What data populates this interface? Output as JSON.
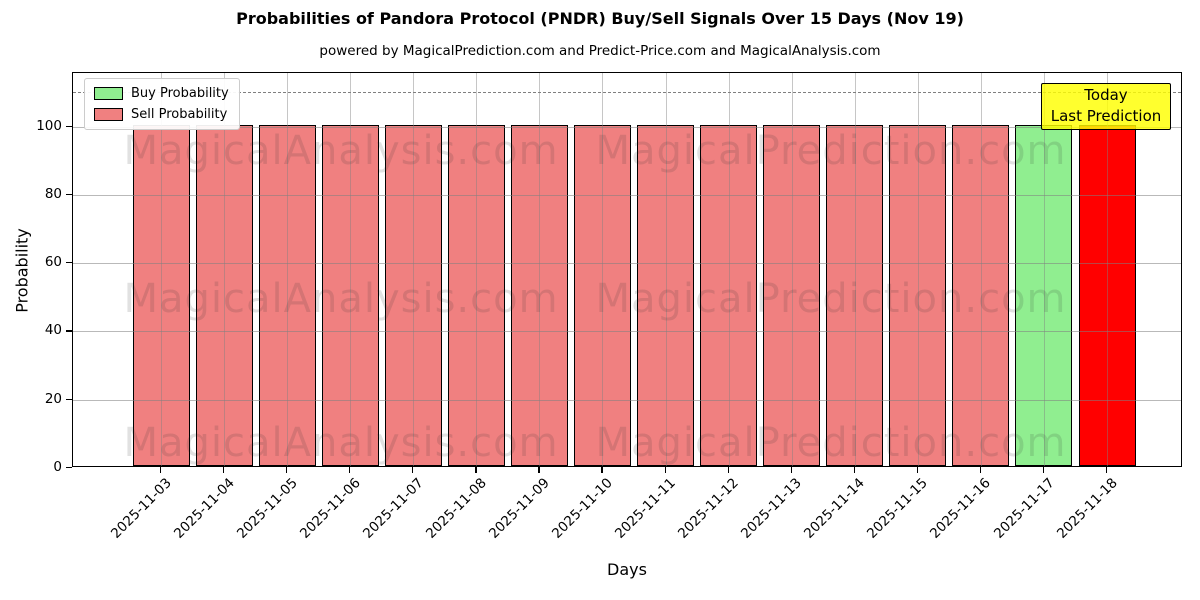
{
  "title": "Probabilities of Pandora Protocol (PNDR) Buy/Sell Signals Over 15 Days (Nov 19)",
  "subtitle": "powered by MagicalPrediction.com and Predict-Price.com and MagicalAnalysis.com",
  "legend": {
    "buy_label": "Buy Probability",
    "sell_label": "Sell Probability"
  },
  "annotation": {
    "line1": "Today",
    "line2": "Last Prediction",
    "bg_color": "#FFFF00",
    "border_color": "#000000"
  },
  "axes": {
    "xlabel": "Days",
    "ylabel": "Probability"
  },
  "watermarks": {
    "left_text": "MagicalAnalysis.com",
    "right_text": "MagicalPrediction.com"
  },
  "colors": {
    "sell_bar": "#F08080",
    "buy_bar": "#90EE90",
    "today_bar": "#FF0000",
    "bar_edge": "#000000",
    "grid": "#808080",
    "dashed_line": "#7f7f7f"
  },
  "chart_data": {
    "type": "bar",
    "title": "Probabilities of Pandora Protocol (PNDR) Buy/Sell Signals Over 15 Days (Nov 19)",
    "subtitle": "powered by MagicalPrediction.com and Predict-Price.com and MagicalAnalysis.com",
    "xlabel": "Days",
    "ylabel": "Probability",
    "ylim": [
      0,
      116
    ],
    "yticks": [
      0,
      20,
      40,
      60,
      80,
      100
    ],
    "dashed_line_y": 110,
    "grid": true,
    "legend_position": "upper left",
    "categories": [
      "2025-11-03",
      "2025-11-04",
      "2025-11-05",
      "2025-11-06",
      "2025-11-07",
      "2025-11-08",
      "2025-11-09",
      "2025-11-10",
      "2025-11-11",
      "2025-11-12",
      "2025-11-13",
      "2025-11-14",
      "2025-11-15",
      "2025-11-16",
      "2025-11-17",
      "2025-11-18"
    ],
    "series": [
      {
        "name": "Buy Probability",
        "color": "#90EE90",
        "values": [
          0,
          0,
          0,
          0,
          0,
          0,
          0,
          0,
          0,
          0,
          0,
          0,
          0,
          0,
          100,
          0
        ]
      },
      {
        "name": "Sell Probability",
        "color": "#F08080",
        "values": [
          100,
          100,
          100,
          100,
          100,
          100,
          100,
          100,
          100,
          100,
          100,
          100,
          100,
          100,
          0,
          100
        ]
      }
    ],
    "bar_colors": [
      "#F08080",
      "#F08080",
      "#F08080",
      "#F08080",
      "#F08080",
      "#F08080",
      "#F08080",
      "#F08080",
      "#F08080",
      "#F08080",
      "#F08080",
      "#F08080",
      "#F08080",
      "#F08080",
      "#90EE90",
      "#FF0000"
    ],
    "today_highlight": {
      "date": "2025-11-18",
      "color": "#FF0000",
      "value": 100
    }
  }
}
